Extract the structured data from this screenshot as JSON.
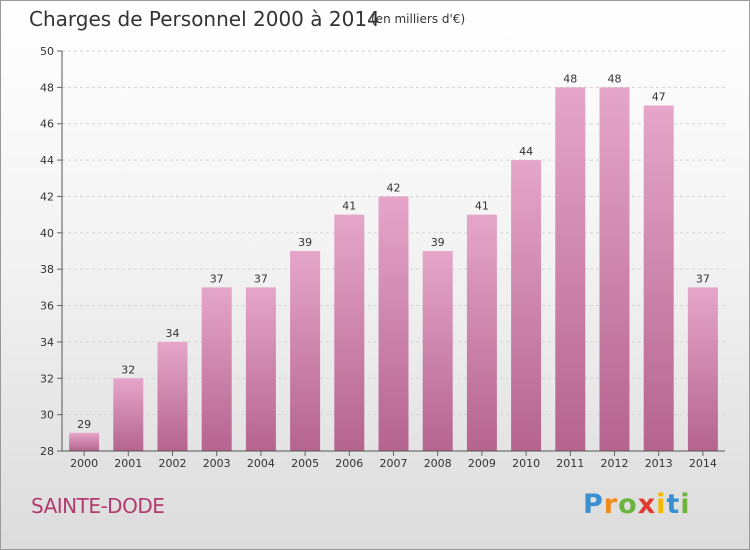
{
  "chart_data": {
    "type": "bar",
    "title": "Charges de Personnel 2000 à 2014",
    "subtitle": "(en milliers d'€)",
    "categories": [
      "2000",
      "2001",
      "2002",
      "2003",
      "2004",
      "2005",
      "2006",
      "2007",
      "2008",
      "2009",
      "2010",
      "2011",
      "2012",
      "2013",
      "2014"
    ],
    "values": [
      29,
      32,
      34,
      37,
      37,
      39,
      41,
      42,
      39,
      41,
      44,
      48,
      48,
      47,
      37
    ],
    "ylim": [
      28,
      50
    ],
    "yticks": [
      28,
      30,
      32,
      34,
      36,
      38,
      40,
      42,
      44,
      46,
      48,
      50
    ],
    "grid": true,
    "bar_color": "#c56d9f",
    "bar_color_light": "#e5a6c9"
  },
  "commune": "SAINTE-DODE",
  "logo": {
    "letters": [
      "P",
      "r",
      "o",
      "x",
      "i",
      "t",
      "i"
    ],
    "colors": [
      "#3a8fd0",
      "#f08a1c",
      "#6db33f",
      "#e23a2e",
      "#f5b800",
      "#3a8fd0",
      "#6db33f"
    ]
  }
}
